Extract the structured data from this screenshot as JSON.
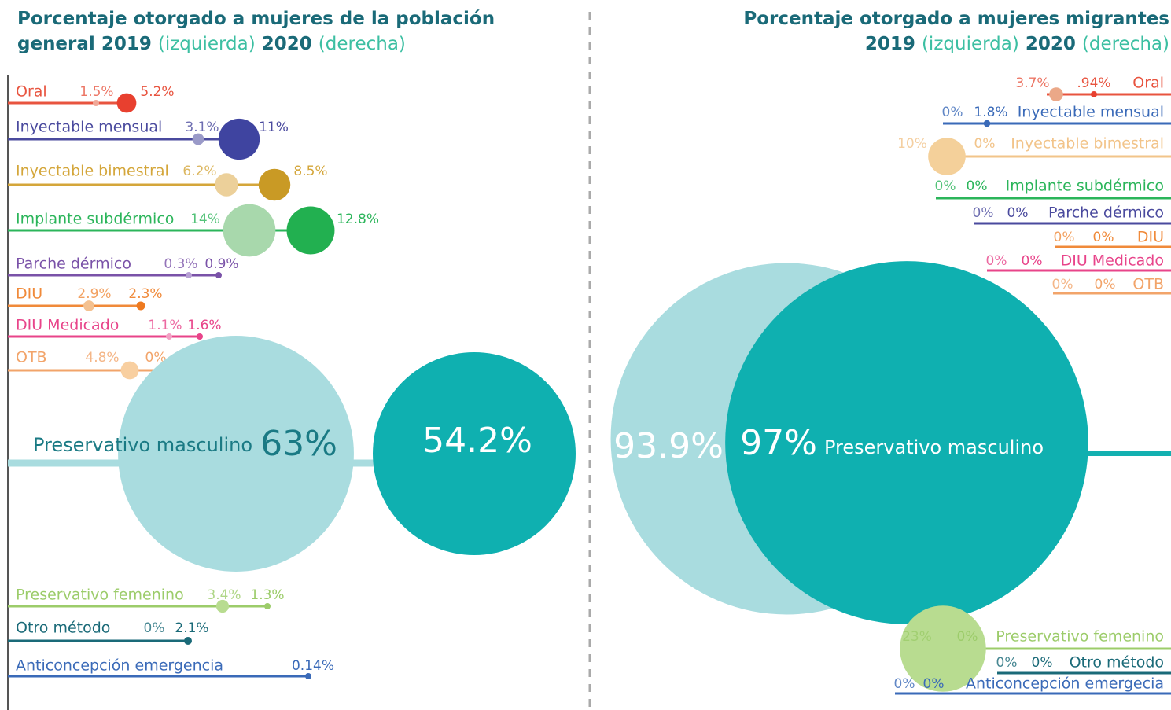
{
  "chart_data": [
    {
      "type": "bubble",
      "title": [
        "Porcentaje otorgado a mujeres de la población general",
        "2019",
        "(izquierda)",
        "2020",
        "(derecha)"
      ],
      "categories": [
        "Oral",
        "Inyectable mensual",
        "Inyectable bimestral",
        "Implante subdérmico",
        "Parche dérmico",
        "DIU",
        "DIU Medicado",
        "OTB",
        "Preservativo masculino",
        "Preservativo femenino",
        "Otro método",
        "Anticoncepción emergencia"
      ],
      "line_colors": [
        "#e8543f",
        "#4a4a9e",
        "#d4a63a",
        "#2bb55a",
        "#7a52a8",
        "#f08a3a",
        "#e8448a",
        "#f2a46a",
        "#13b0b0",
        "#9ccc6a",
        "#1a6a78",
        "#3a6ab8"
      ],
      "series": [
        {
          "values": [
            1.5,
            3.1,
            6.2,
            14,
            0.3,
            2.9,
            1.1,
            4.8,
            63,
            3.4,
            0,
            null
          ],
          "value_labels": [
            "1.5%",
            "3.1%",
            "6.2%",
            "14%",
            "0.3%",
            "2.9%",
            "1.1%",
            "4.8%",
            "63%",
            "3.4%",
            "0%",
            null
          ],
          "colors": [
            "#f0a898",
            "#9a9ac8",
            "#ecd09a",
            "#a8d8ac",
            "#b7a0d4",
            "#f4c190",
            "#f2a0c4",
            "#f8cfa0",
            "#a9dcdf",
            "#b8dc90",
            "#7aa8b0",
            "#9ab4dc"
          ]
        },
        {
          "values": [
            5.2,
            11,
            8.5,
            12.8,
            0.9,
            2.3,
            1.6,
            0,
            54.2,
            1.3,
            2.1,
            0.14
          ],
          "value_labels": [
            "5.2%",
            "11%",
            "8.5%",
            "12.8%",
            "0.9%",
            "2.3%",
            "1.6%",
            "0%",
            "54.2%",
            "1.3%",
            "2.1%",
            "0.14%"
          ],
          "colors": [
            "#e8402f",
            "#3f44a0",
            "#c99a25",
            "#22b050",
            "#7a52a8",
            "#ee7a20",
            "#e8448a",
            "#f2a46a",
            "#0fb0b0",
            "#9ccc6a",
            "#1a6a78",
            "#3a6ab8"
          ]
        }
      ]
    },
    {
      "type": "bubble",
      "title": [
        "Porcentaje otorgado a mujeres migrantes",
        "2019",
        "(izquierda)",
        "2020",
        "(derecha)"
      ],
      "categories": [
        "Oral",
        "Inyectable mensual",
        "Inyectable bimestral",
        "Implante subdérmico",
        "Parche dérmico",
        "DIU",
        "DIU Medicado",
        "OTB",
        "Preservativo masculino",
        "Preservativo femenino",
        "Otro método",
        "Anticoncepción emergecia"
      ],
      "line_colors": [
        "#e8543f",
        "#3a6ab8",
        "#f2c48a",
        "#2bb55a",
        "#4a4a9e",
        "#f08a3a",
        "#e8448a",
        "#f2a46a",
        "#13b0b0",
        "#9ccc6a",
        "#1a6a78",
        "#3a6ab8"
      ],
      "series": [
        {
          "values": [
            3.7,
            0,
            10,
            0,
            0,
            0,
            0,
            0,
            93.9,
            23,
            0,
            0
          ],
          "value_labels": [
            "3.7%",
            "0%",
            "10%",
            "0%",
            "0%",
            "0%",
            "0%",
            "0%",
            "93.9%",
            "23%",
            "0%",
            "0%"
          ],
          "colors": [
            "#eba888",
            "#9ab4dc",
            "#f4d09a",
            "#a8d8ac",
            "#9a9ac8",
            "#f4c190",
            "#f2a0c4",
            "#f8cfa0",
            "#a9dcdf",
            "#b8dc90",
            "#7aa8b0",
            "#9ab4dc"
          ]
        },
        {
          "values": [
            0.94,
            1.8,
            0,
            0,
            0,
            0,
            0,
            0,
            97,
            0,
            0,
            0
          ],
          "value_labels": [
            ".94%",
            "1.8%",
            "0%",
            "0%",
            "0%",
            "0%",
            "0%",
            "0%",
            "97%",
            "0%",
            "0%",
            "0%"
          ],
          "colors": [
            "#e8402f",
            "#3a6ab8",
            "#f2c48a",
            "#22b050",
            "#4a4a9e",
            "#ee7a20",
            "#e8448a",
            "#f2a46a",
            "#0fb0b0",
            "#9ccc6a",
            "#1a6a78",
            "#3a6ab8"
          ]
        }
      ]
    }
  ]
}
